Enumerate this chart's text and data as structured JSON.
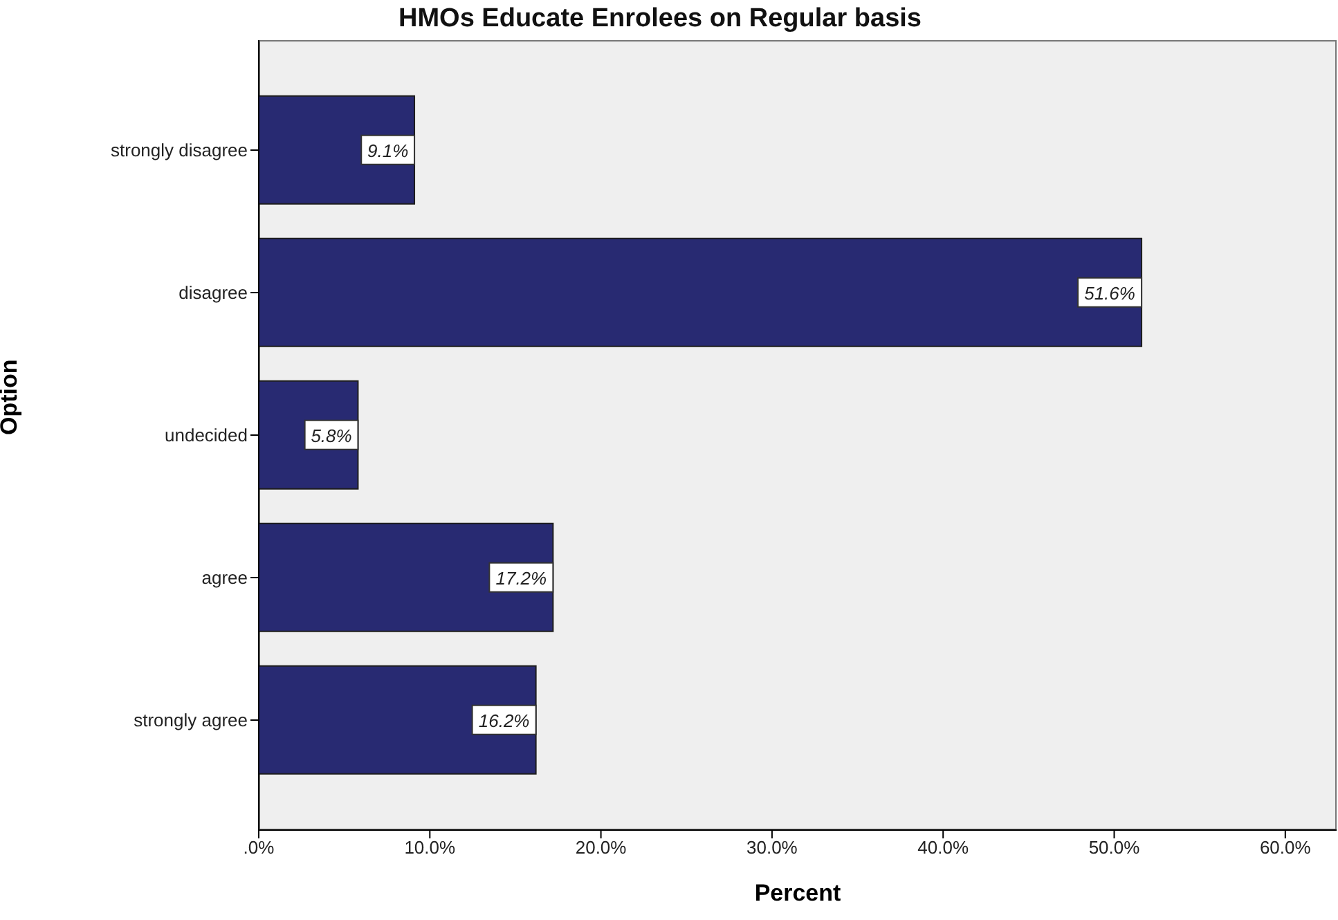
{
  "chart_data": {
    "type": "bar",
    "orientation": "horizontal",
    "title": "HMOs Educate Enrolees on Regular basis",
    "xlabel": "Percent",
    "ylabel": "Option",
    "categories": [
      "strongly disagree",
      "disagree",
      "undecided",
      "agree",
      "strongly agree"
    ],
    "values": [
      9.1,
      51.6,
      5.8,
      17.2,
      16.2
    ],
    "color": "#282a72",
    "value_labels": [
      "9.1%",
      "51.6%",
      "5.8%",
      "17.2%",
      "16.2%"
    ],
    "xlim": [
      0,
      63
    ],
    "xticks": [
      {
        "value": 0,
        "label": ".0%"
      },
      {
        "value": 10,
        "label": "10.0%"
      },
      {
        "value": 20,
        "label": "20.0%"
      },
      {
        "value": 30,
        "label": "30.0%"
      },
      {
        "value": 40,
        "label": "40.0%"
      },
      {
        "value": 50,
        "label": "50.0%"
      },
      {
        "value": 60,
        "label": "60.0%"
      }
    ]
  }
}
